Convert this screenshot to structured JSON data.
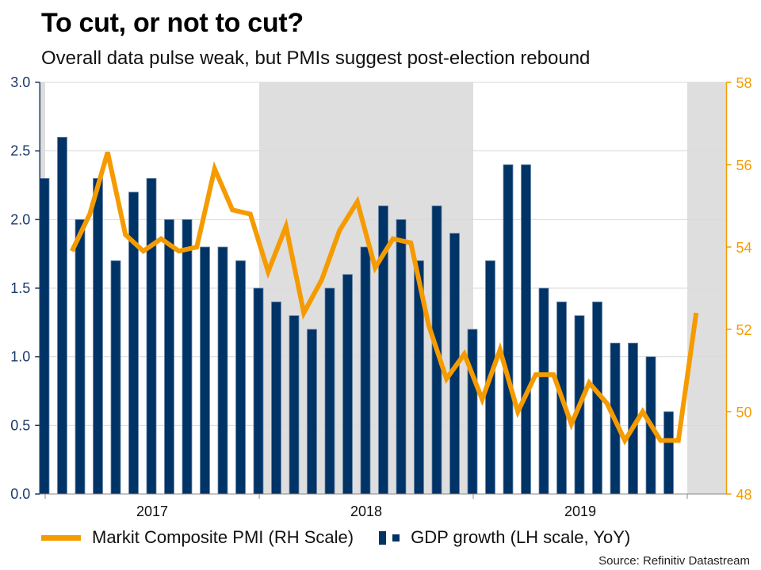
{
  "header": {
    "title": "To cut, or not to cut?",
    "subtitle": "Overall data pulse weak, but PMIs suggest post-election rebound"
  },
  "source": "Source: Refinitiv Datastream",
  "colors": {
    "bars": "#003366",
    "bar_edge": "#6a86a8",
    "line": "#f59b00",
    "shade": "#dedede",
    "grid": "#d9d9d9",
    "left_axis": "#1b3a6b",
    "right_axis": "#f59b00"
  },
  "chart_data": {
    "type": "bar",
    "title": "To cut, or not to cut?",
    "subtitle": "Overall data pulse weak, but PMIs suggest post-election rebound",
    "x_unit": "month",
    "x_tick_labels": [
      "2017",
      "2018",
      "2019"
    ],
    "left_axis": {
      "label": "GDP growth (LH scale, YoY)",
      "range": [
        0.0,
        3.0
      ],
      "ticks": [
        "0.0",
        "0.5",
        "1.0",
        "1.5",
        "2.0",
        "2.5",
        "3.0"
      ],
      "tick_values": [
        0,
        0.5,
        1.0,
        1.5,
        2.0,
        2.5,
        3.0
      ]
    },
    "right_axis": {
      "label": "Markit Composite PMI (RH Scale)",
      "range": [
        48,
        58
      ],
      "ticks": [
        "48",
        "50",
        "52",
        "54",
        "56",
        "58"
      ],
      "tick_values": [
        48,
        50,
        52,
        54,
        56,
        58
      ]
    },
    "grid": true,
    "legend_placement": "bottom",
    "series": [
      {
        "name": "GDP growth (LH scale, YoY)",
        "type": "bar",
        "axis": "left",
        "start_month_index": 0,
        "values": [
          2.3,
          2.6,
          2.0,
          2.3,
          1.7,
          2.2,
          2.3,
          2.0,
          2.0,
          1.8,
          1.8,
          1.7,
          1.5,
          1.4,
          1.3,
          1.2,
          1.5,
          1.6,
          1.8,
          2.1,
          2.0,
          1.7,
          2.1,
          1.9,
          1.2,
          1.7,
          2.4,
          2.4,
          1.5,
          1.4,
          1.3,
          1.4,
          1.1,
          1.1,
          1.0,
          0.6
        ]
      },
      {
        "name": "Markit Composite PMI (RH Scale)",
        "type": "line",
        "axis": "right",
        "start_month_index": 1,
        "values": [
          53.9,
          54.8,
          56.3,
          54.3,
          53.9,
          54.2,
          53.9,
          54.0,
          55.9,
          54.9,
          54.8,
          53.4,
          54.5,
          52.4,
          53.2,
          54.4,
          55.1,
          53.5,
          54.2,
          54.1,
          52.1,
          50.8,
          51.4,
          50.3,
          51.5,
          50.0,
          50.9,
          50.9,
          49.7,
          50.7,
          50.2,
          49.3,
          50.0,
          49.3,
          49.3,
          52.4
        ]
      }
    ],
    "shaded_periods_month_index": [
      [
        -0.3,
        0
      ],
      [
        12,
        24
      ],
      [
        36,
        38.2
      ]
    ],
    "x_range_month_index": [
      -0.3,
      38.2
    ],
    "year_tick_month_index": [
      0,
      12,
      24,
      36
    ]
  }
}
